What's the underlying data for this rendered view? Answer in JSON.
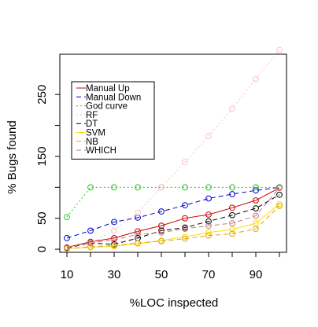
{
  "chart_data": {
    "type": "line",
    "title": "",
    "xlabel": "%LOC inspected",
    "ylabel": "% Bugs found",
    "x": [
      10,
      20,
      30,
      40,
      50,
      60,
      70,
      80,
      90,
      100
    ],
    "x_ticks": [
      "10",
      "30",
      "50",
      "70",
      "90"
    ],
    "y_ticks": [
      "0",
      "50",
      "150",
      "250"
    ],
    "xlim": [
      7,
      103
    ],
    "ylim": [
      -5,
      315
    ],
    "grid": false,
    "legend_position": "top-left",
    "series": [
      {
        "name": "Manual Up",
        "color": "#cc0000",
        "dash": "solid",
        "values": [
          3,
          12,
          18,
          29,
          38,
          50,
          56,
          67,
          79,
          99
        ]
      },
      {
        "name": "Manual Down",
        "color": "#0000cc",
        "dash": "dashed",
        "values": [
          18,
          30,
          44,
          51,
          61,
          71,
          82,
          89,
          95,
          100
        ]
      },
      {
        "name": "God curve",
        "color": "#22cc22",
        "dash": "dotted",
        "values": [
          52,
          100,
          100,
          100,
          100,
          100,
          100,
          100,
          100,
          100
        ]
      },
      {
        "name": "RF",
        "color": "#ffc0cb",
        "dash": "dotted",
        "values": [
          2,
          10,
          30,
          59,
          100,
          141,
          183,
          227,
          275,
          322
        ]
      },
      {
        "name": "DT",
        "color": "#000000",
        "dash": "dashed",
        "values": [
          2,
          10,
          8,
          18,
          30,
          35,
          45,
          55,
          66,
          88
        ]
      },
      {
        "name": "SVM",
        "color": "#ffdd00",
        "dash": "solid",
        "values": [
          1,
          3,
          5,
          9,
          14,
          20,
          27,
          32,
          42,
          73
        ]
      },
      {
        "name": "NB",
        "color": "#daa520",
        "dash": "dashed",
        "values": [
          1,
          4,
          6,
          10,
          13,
          17,
          22,
          25,
          33,
          70
        ]
      },
      {
        "name": "WHICH",
        "color": "#c87878",
        "dash": "dashed",
        "values": [
          3,
          10,
          15,
          24,
          27,
          33,
          38,
          42,
          54,
          99
        ]
      }
    ]
  }
}
